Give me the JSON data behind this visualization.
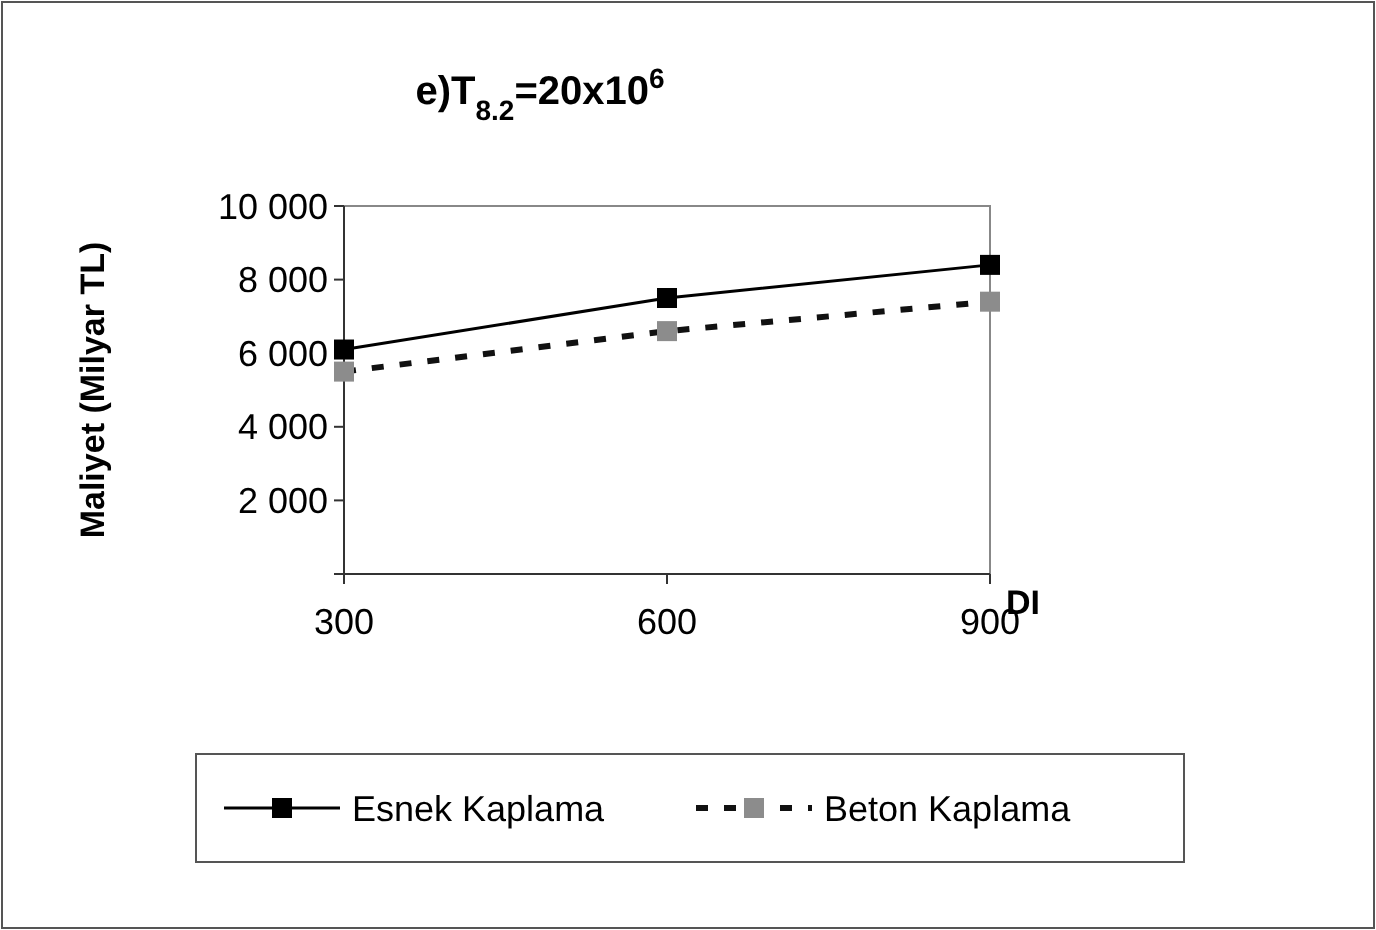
{
  "chart_data": {
    "type": "line",
    "title": "e)T$_{8.2}$=20x10$^{6}$",
    "xlabel": "DI",
    "ylabel": "Maliyet (Milyar TL)",
    "x": [
      300,
      600,
      900
    ],
    "series": [
      {
        "name": "Esnek Kaplama",
        "color": "#000000",
        "line_style": "solid",
        "values": [
          6100,
          7500,
          8400
        ]
      },
      {
        "name": "Beton Kaplama",
        "color": "#8c8c8c",
        "line_style": "dashed",
        "values": [
          5500,
          6600,
          7400
        ]
      }
    ],
    "xlim": [
      300,
      900
    ],
    "xticks": [
      300,
      600,
      900
    ],
    "ylim": [
      0,
      10000
    ],
    "yticks": [
      {
        "value": 0,
        "label": null
      },
      {
        "value": 2000,
        "label": "2 000"
      },
      {
        "value": 4000,
        "label": "4 000"
      },
      {
        "value": 6000,
        "label": "6 000"
      },
      {
        "value": 8000,
        "label": "8 000"
      },
      {
        "value": 10000,
        "label": "10 000"
      }
    ],
    "grid": false,
    "legend": "bottom",
    "marker": "square"
  }
}
